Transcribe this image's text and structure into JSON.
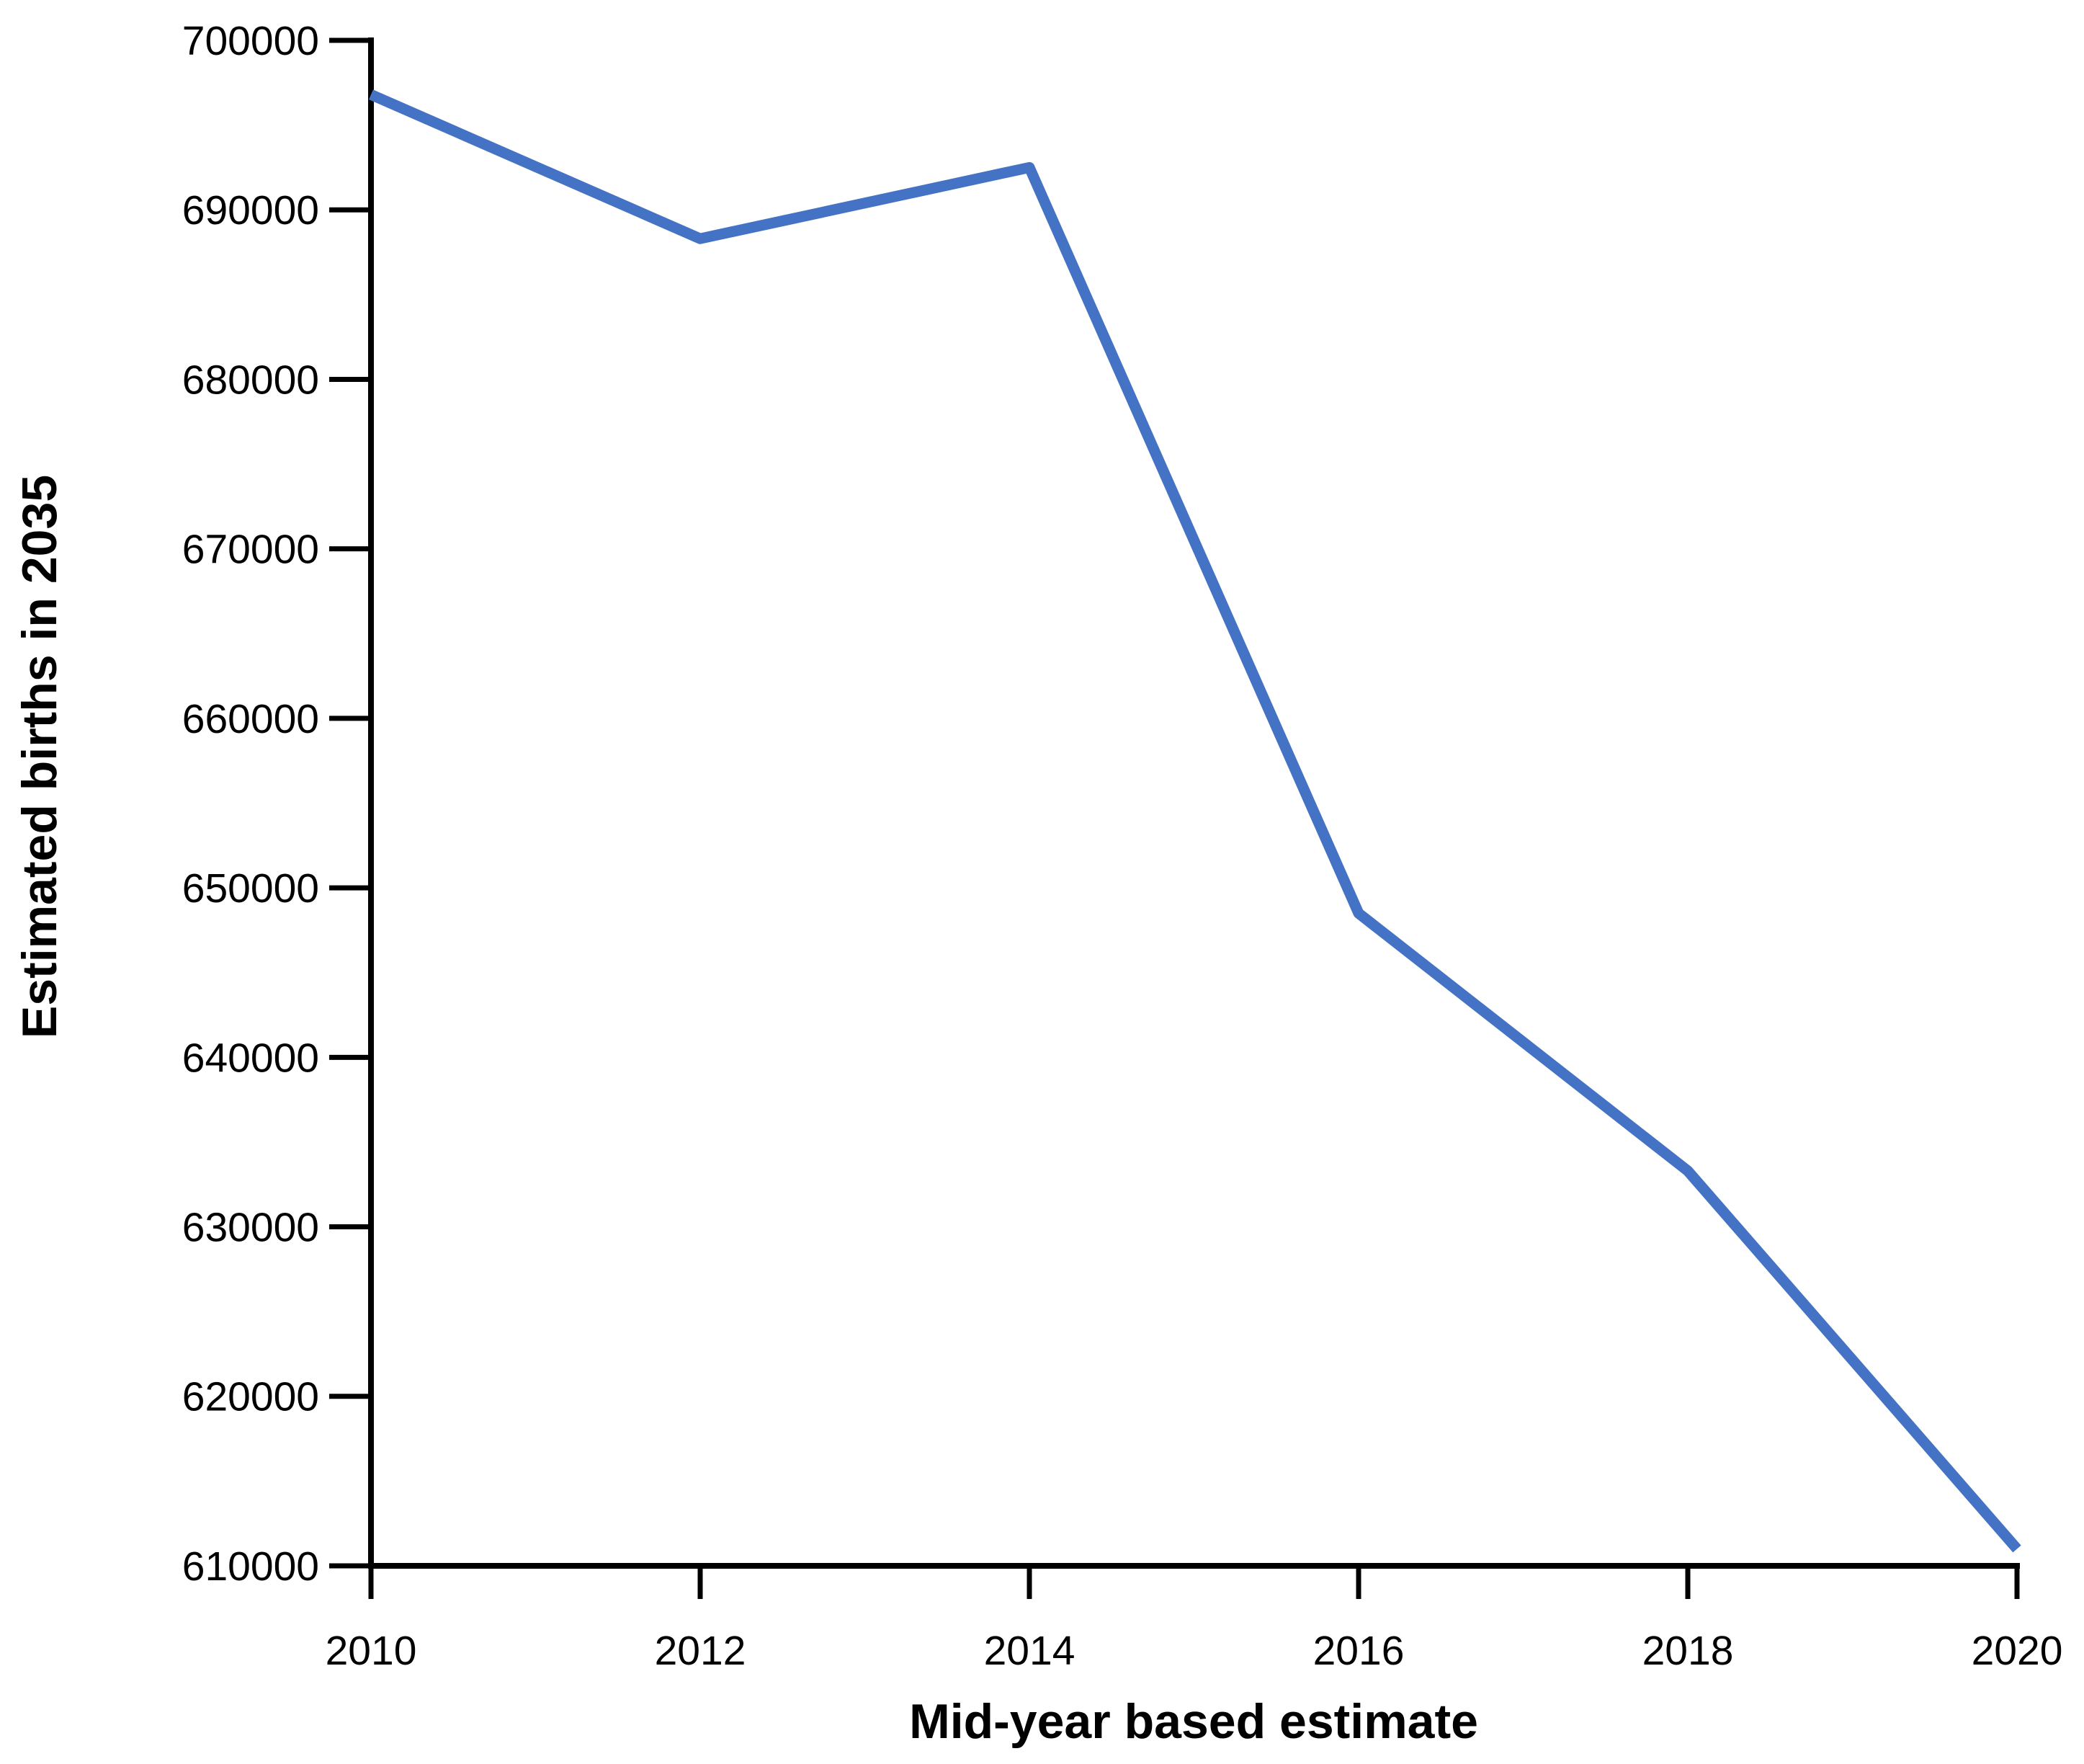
{
  "chart_data": {
    "type": "line",
    "title": "",
    "xlabel": "Mid-year based estimate",
    "ylabel": "Estimated births in 2035",
    "x": [
      "2010",
      "2012",
      "2014",
      "2016",
      "2018",
      "2020"
    ],
    "series": [
      {
        "name": "Estimated births in 2035",
        "values": [
          696800,
          688300,
          692500,
          648500,
          633300,
          611000
        ]
      }
    ],
    "ylim": [
      610000,
      700000
    ],
    "yticks": [
      700000,
      690000,
      680000,
      670000,
      660000,
      650000,
      640000,
      630000,
      620000,
      610000
    ],
    "xticks": [
      "2010",
      "2012",
      "2014",
      "2016",
      "2018",
      "2020"
    ],
    "grid": "off",
    "legend": "none",
    "colors": {
      "line": "#4472C4",
      "axis": "#000000",
      "text": "#000000",
      "background": "#FFFFFF"
    }
  }
}
